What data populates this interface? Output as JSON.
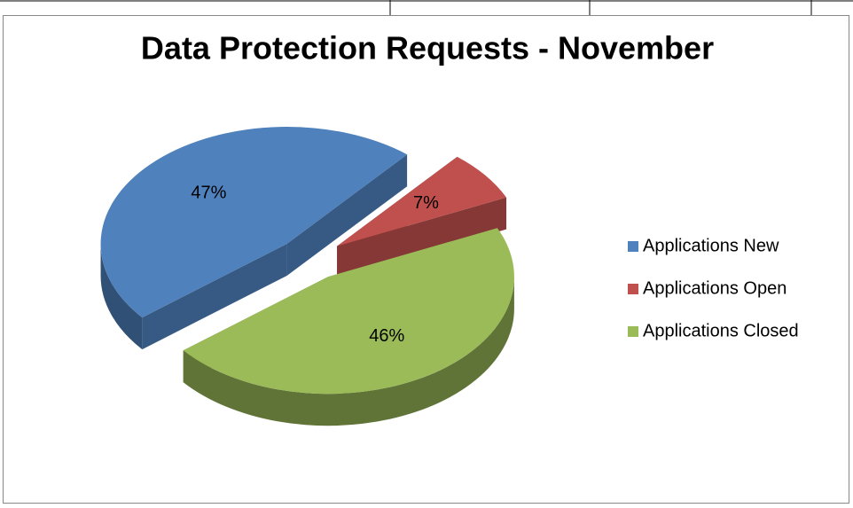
{
  "chart_data": {
    "type": "pie",
    "title": "Data Protection Requests - November",
    "categories": [
      "Applications New",
      "Applications Open",
      "Applications Closed"
    ],
    "values": [
      47,
      7,
      46
    ],
    "value_labels": [
      "47%",
      "7%",
      "46%"
    ],
    "colors": [
      "#4f81bd",
      "#c0504d",
      "#9bbb59"
    ],
    "legend": "right"
  }
}
